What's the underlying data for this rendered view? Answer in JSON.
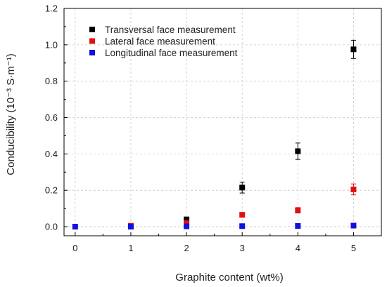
{
  "chart_data": {
    "type": "scatter",
    "xlabel": "Graphite content (wt%)",
    "ylabel": "Conducibility (10⁻³ S·m⁻¹)",
    "xlim": [
      -0.2,
      5.5
    ],
    "ylim": [
      -0.05,
      1.2
    ],
    "x_ticks": [
      0,
      1,
      2,
      3,
      4,
      5
    ],
    "y_ticks": [
      0.0,
      0.2,
      0.4,
      0.6,
      0.8,
      1.0,
      1.2
    ],
    "y_tick_labels": [
      "0.0",
      "0.2",
      "0.4",
      "0.6",
      "0.8",
      "1.0",
      "1.2"
    ],
    "grid": true,
    "legend_position": "top-left",
    "series": [
      {
        "name": "Transversal face measurement",
        "color": "#000000",
        "points": [
          {
            "x": 2,
            "y": 0.04,
            "err": 0.01
          },
          {
            "x": 3,
            "y": 0.215,
            "err": 0.03
          },
          {
            "x": 4,
            "y": 0.415,
            "err": 0.045
          },
          {
            "x": 5,
            "y": 0.975,
            "err": 0.05
          }
        ]
      },
      {
        "name": "Lateral face measurement",
        "color": "#e01010",
        "points": [
          {
            "x": 1,
            "y": 0.005,
            "err": 0.0
          },
          {
            "x": 2,
            "y": 0.02,
            "err": 0.0
          },
          {
            "x": 3,
            "y": 0.065,
            "err": 0.005
          },
          {
            "x": 4,
            "y": 0.09,
            "err": 0.015
          },
          {
            "x": 5,
            "y": 0.205,
            "err": 0.03
          }
        ]
      },
      {
        "name": "Longitudinal face measurement",
        "color": "#1010e0",
        "points": [
          {
            "x": 0,
            "y": 0.0,
            "err": 0.0
          },
          {
            "x": 1,
            "y": 0.0,
            "err": 0.0
          },
          {
            "x": 2,
            "y": 0.002,
            "err": 0.0
          },
          {
            "x": 3,
            "y": 0.003,
            "err": 0.0
          },
          {
            "x": 4,
            "y": 0.004,
            "err": 0.0
          },
          {
            "x": 5,
            "y": 0.006,
            "err": 0.0
          }
        ]
      }
    ]
  }
}
